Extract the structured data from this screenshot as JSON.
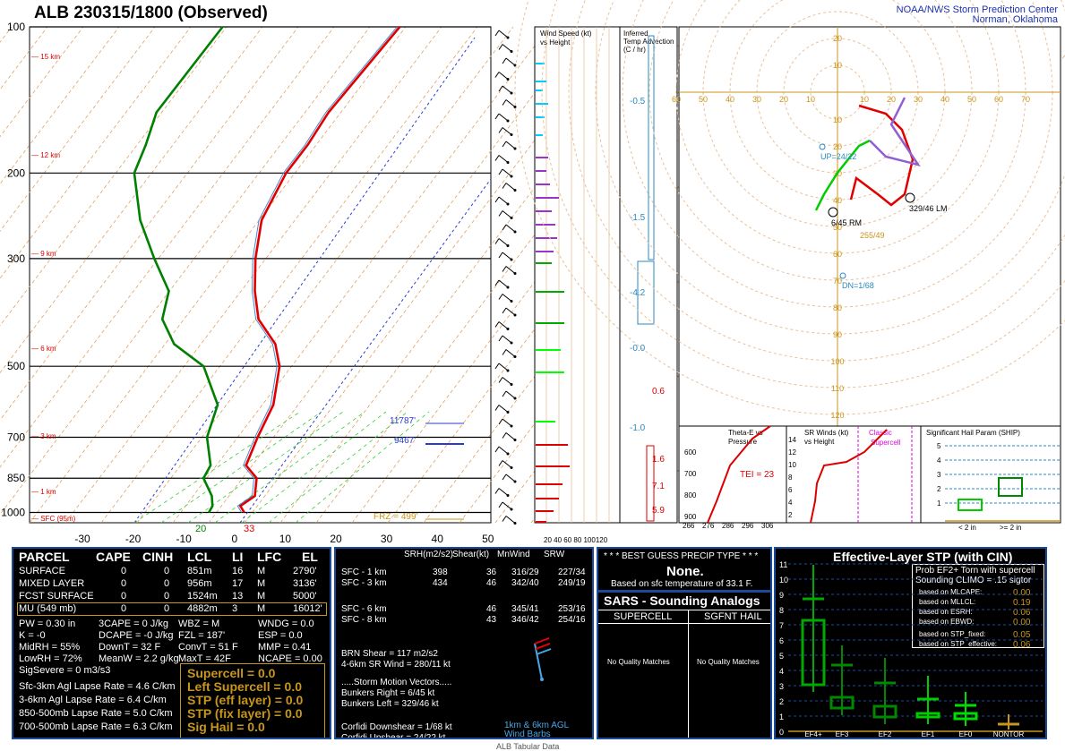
{
  "header": {
    "title": "ALB   230315/1800  (Observed)",
    "credit_line1": "NOAA/NWS Storm Prediction Center",
    "credit_line2": "Norman, Oklahoma"
  },
  "skewt": {
    "pressure_ticks": [
      "100",
      "200",
      "300",
      "500",
      "700",
      "850",
      "1000"
    ],
    "temp_ticks": [
      "-30",
      "-20",
      "-10",
      "0",
      "10",
      "20",
      "30",
      "40",
      "50"
    ],
    "height_labels": [
      "15 km",
      "12 km",
      "9 km",
      "6 km",
      "3 km",
      "1 km",
      "SFC (95m)"
    ],
    "annotations": {
      "hgt_a": "11787'",
      "hgt_b": "9467'",
      "frz": "FRZ = 499'",
      "sfc_temp": "33",
      "sfc_dew": "20"
    }
  },
  "chart_data": [
    {
      "type": "line",
      "title": "Skew-T",
      "x_units": "C",
      "y_units": "mb",
      "ylim": [
        1050,
        100
      ],
      "xlim": [
        -40,
        50
      ],
      "series": [
        {
          "name": "",
          "color": "#e00000",
          "x": [
            0.5,
            -1.5,
            -0.5,
            -3.5,
            -8,
            -11,
            -14,
            -20,
            -25,
            -33,
            -39,
            -45,
            -51,
            -55,
            -56,
            -58,
            -60
          ],
          "y": [
            1000,
            970,
            925,
            850,
            800,
            700,
            600,
            500,
            450,
            400,
            350,
            300,
            250,
            200,
            175,
            150,
            100
          ]
        },
        {
          "name": "",
          "color": "#008000",
          "x": [
            -6.5,
            -7,
            -9,
            -14,
            -15,
            -21,
            -25,
            -35,
            -45,
            -52,
            -56,
            -65,
            -75,
            -85,
            -88,
            -92,
            -95
          ],
          "y": [
            1000,
            970,
            925,
            850,
            800,
            700,
            600,
            500,
            450,
            400,
            350,
            300,
            250,
            200,
            175,
            150,
            100
          ]
        }
      ]
    },
    {
      "type": "scatter",
      "title": "Hodograph",
      "rings_kt": [
        10,
        20,
        30,
        40,
        50,
        60,
        70,
        80,
        90,
        100,
        110,
        120
      ],
      "series": [
        {
          "name": "0-3 km",
          "color": "#e00000",
          "points": [
            [
              5,
              -40
            ],
            [
              7,
              -32
            ],
            [
              15,
              -38
            ],
            [
              20,
              -42
            ],
            [
              25,
              -38
            ],
            [
              28,
              -25
            ],
            [
              24,
              -14
            ],
            [
              18,
              -8
            ],
            [
              8,
              -5
            ]
          ]
        },
        {
          "name": "3-6 km",
          "color": "#00cc00",
          "points": [
            [
              -8,
              -44
            ],
            [
              -5,
              -38
            ],
            [
              0,
              -30
            ],
            [
              8,
              -20
            ],
            [
              12,
              -18
            ]
          ]
        },
        {
          "name": "6-9 km",
          "color": "#9060d0",
          "points": [
            [
              12,
              -18
            ],
            [
              18,
              -24
            ],
            [
              30,
              -27
            ],
            [
              20,
              -12
            ],
            [
              25,
              -2
            ]
          ]
        }
      ],
      "labels": {
        "up": "UP=24/22",
        "dn": "DN=1/68",
        "rm": "6/45 RM",
        "lm": "329/46 LM",
        "mean": "255/49"
      },
      "axis_labels": [
        "60",
        "50",
        "40",
        "30",
        "20",
        "10",
        "10",
        "20",
        "30",
        "40",
        "50",
        "60",
        "70"
      ]
    }
  ],
  "panels": {
    "wind_speed_title": "Wind Speed (kt)\nvs Height",
    "wind_speed_axis": "20 40 60 80 100120",
    "temp_adv_title": "Inferred\nTemp Advection\n(C / hr)",
    "temp_adv_values": [
      "-0.5",
      "-1.5",
      "-4.2",
      "-0.0",
      "0.6",
      "-1.0",
      "1.6",
      "7.1",
      "5.9"
    ],
    "theta_title": "Theta-E vs\nPressure",
    "theta_note": "TEI = 23",
    "theta_xticks": [
      "266",
      "276",
      "286",
      "296",
      "306"
    ],
    "theta_yticks": [
      "600",
      "700",
      "800",
      "900"
    ],
    "sr_title": "SR Winds (kt)\nvs Height",
    "sr_note1": "Classic",
    "sr_note2": "Supercell",
    "sr_yticks": [
      "14",
      "12",
      "10",
      "8",
      "6",
      "4",
      "2"
    ],
    "ship_title": "Significant Hail Param (SHIP)",
    "ship_yticks": [
      "5",
      "4",
      "3",
      "2",
      "1"
    ],
    "ship_xlabels": [
      "< 2 in",
      ">= 2 in"
    ]
  },
  "parcel": {
    "headers": [
      "PARCEL",
      "CAPE",
      "CINH",
      "LCL",
      "LI",
      "LFC",
      "EL"
    ],
    "rows": [
      [
        "SURFACE",
        "0",
        "0",
        "851m",
        "16",
        "M",
        "2790'"
      ],
      [
        "MIXED LAYER",
        "0",
        "0",
        "956m",
        "17",
        "M",
        "3136'"
      ],
      [
        "FCST SURFACE",
        "0",
        "0",
        "1524m",
        "13",
        "M",
        "5000'"
      ],
      [
        "MU   (549 mb)",
        "0",
        "0",
        "4882m",
        "3",
        "M",
        "16012'"
      ]
    ],
    "indices": [
      [
        "PW = 0.30 in",
        "3CAPE = 0 J/kg",
        "WBZ = M",
        "WNDG = 0.0"
      ],
      [
        "K = -0",
        "DCAPE = -0 J/kg",
        "FZL = 187'",
        "ESP = 0.0"
      ],
      [
        "MidRH = 55%",
        "DownT = 32 F",
        "ConvT = 51 F",
        "MMP = 0.41"
      ],
      [
        "LowRH = 72%",
        "MeanW = 2.2 g/kg",
        "MaxT = 42F",
        "NCAPE = 0.00"
      ]
    ],
    "sigsevere": "SigSevere = 0 m3/s3",
    "lapse": [
      "Sfc-3km Agl Lapse Rate =  4.6 C/km",
      "3-6km Agl Lapse Rate =  6.4 C/km",
      "850-500mb Lapse Rate =  5.0 C/km",
      "700-500mb Lapse Rate =  6.3 C/km"
    ],
    "comp": [
      "Supercell = 0.0",
      "Left Supercell = 0.0",
      "STP (eff layer) = 0.0",
      "STP (fix layer) = 0.0",
      "Sig Hail = 0.0"
    ]
  },
  "kinematic": {
    "headers": [
      "SRH(m2/s2)",
      "Shear(kt)",
      "MnWind",
      "SRW"
    ],
    "rows": [
      [
        "SFC - 1 km",
        "398",
        "36",
        "316/29",
        "227/34"
      ],
      [
        "SFC - 3 km",
        "434",
        "46",
        "342/40",
        "249/19"
      ],
      [
        "SFC - 6 km",
        "",
        "46",
        "345/41",
        "253/16"
      ],
      [
        "SFC - 8 km",
        "",
        "43",
        "346/42",
        "254/16"
      ]
    ],
    "brn": "BRN Shear =  117 m2/s2",
    "sr46": "4-6km SR Wind =         280/11 kt",
    "motion_title": ".....Storm Motion Vectors.....",
    "motion": [
      "Bunkers Right =         6/45 kt",
      "Bunkers Left =         329/46 kt",
      "Corfidi Downshear =      1/68 kt",
      "Corfidi Upshear =       24/22 kt"
    ],
    "barb_label": "1km & 6km AGL\nWind Barbs"
  },
  "precip": {
    "title": "* * * BEST GUESS PRECIP TYPE * * *",
    "value": "None.",
    "note": "Based on sfc temperature of 33.1 F."
  },
  "sars": {
    "title": "SARS - Sounding Analogs",
    "col1": "SUPERCELL",
    "col2": "SGFNT HAIL",
    "msg1": "No Quality Matches",
    "msg2": "No Quality Matches"
  },
  "stp": {
    "title": "Effective-Layer STP (with CIN)",
    "prob_title": "Prob EF2+ Torn with supercell",
    "prob_sub": "Sounding CLIMO = .15 sigtor",
    "items": [
      [
        "based on MLCAPE:",
        "0.00"
      ],
      [
        "based on MLLCL:",
        "0.19"
      ],
      [
        "based on ESRH:",
        "0.06"
      ],
      [
        "based on EBWD:",
        "0.00"
      ],
      [
        "based on STP_fixed:",
        "0.05"
      ],
      [
        "based on STP_effective:",
        "0.06"
      ]
    ],
    "yticks": [
      "11",
      "10",
      "9",
      "8",
      "7",
      "6",
      "5",
      "4",
      "3",
      "2",
      "1",
      "0"
    ],
    "xlabels": [
      "EF4+",
      "EF3",
      "EF2",
      "EF1",
      "EF0",
      "NONTOR"
    ]
  },
  "footer": "ALB Tabular Data",
  "colors": {
    "temp": "#e00000",
    "dew": "#008000",
    "panel_border": "#1c4a9a",
    "gold": "#c8961a"
  }
}
